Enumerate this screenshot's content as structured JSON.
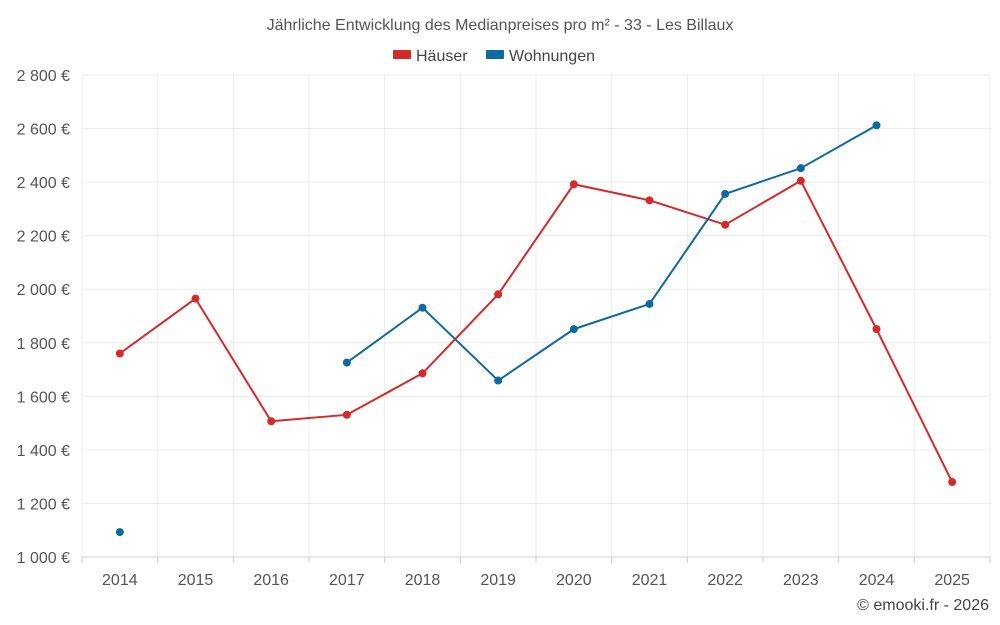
{
  "chart_data": {
    "type": "line",
    "title": "Jährliche Entwicklung des Medianpreises pro m² - 33 - Les Billaux",
    "x": [
      "2014",
      "2015",
      "2016",
      "2017",
      "2018",
      "2019",
      "2020",
      "2021",
      "2022",
      "2023",
      "2024",
      "2025"
    ],
    "ylim": [
      1000,
      2800
    ],
    "yticks": [
      1000,
      1200,
      1400,
      1600,
      1800,
      2000,
      2200,
      2400,
      2600,
      2800
    ],
    "ytick_labels": [
      "1 000 €",
      "1 200 €",
      "1 400 €",
      "1 600 €",
      "1 800 €",
      "2 000 €",
      "2 200 €",
      "2 400 €",
      "2 600 €",
      "2 800 €"
    ],
    "grid": true,
    "legend_position": "top-center",
    "series": [
      {
        "name": "Häuser",
        "color": "#d42a2a",
        "values": [
          1760,
          1965,
          1507,
          1531,
          1686,
          1981,
          2392,
          2332,
          2241,
          2405,
          1851,
          1280
        ]
      },
      {
        "name": "Wohnungen",
        "color": "#0d6a9e",
        "values": [
          1093,
          null,
          null,
          1726,
          1931,
          1659,
          1851,
          1945,
          2356,
          2452,
          2612,
          null
        ]
      }
    ]
  },
  "credit": "© emooki.fr - 2026"
}
